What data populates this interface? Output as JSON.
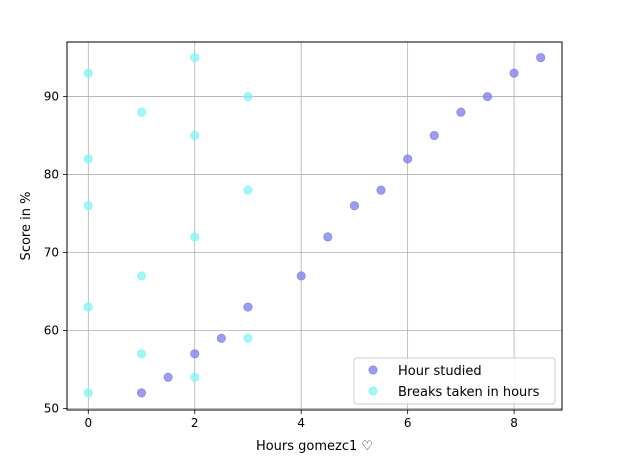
{
  "chart_data": {
    "type": "scatter",
    "xlabel": "Hours gomezc1 ♡",
    "ylabel": "Score in %",
    "xlim": [
      -0.4,
      8.9
    ],
    "ylim": [
      49.8,
      97.0
    ],
    "xticks": [
      0,
      2,
      4,
      6,
      8
    ],
    "yticks": [
      50,
      60,
      70,
      80,
      90
    ],
    "grid": true,
    "legend_position": "lower-right",
    "series": [
      {
        "name": "Hour studied",
        "color": "#7b7bf0",
        "points": [
          [
            1,
            52
          ],
          [
            1.5,
            54
          ],
          [
            2,
            57
          ],
          [
            2.5,
            59
          ],
          [
            3,
            63
          ],
          [
            4,
            67
          ],
          [
            4.5,
            72
          ],
          [
            5,
            76
          ],
          [
            5.5,
            78
          ],
          [
            6,
            82
          ],
          [
            6.5,
            85
          ],
          [
            7,
            88
          ],
          [
            7.5,
            90
          ],
          [
            8,
            93
          ],
          [
            8.5,
            95
          ]
        ]
      },
      {
        "name": "Breaks taken in hours",
        "color": "#7ff5f5",
        "points": [
          [
            0,
            93
          ],
          [
            0,
            82
          ],
          [
            0,
            76
          ],
          [
            0,
            63
          ],
          [
            0,
            52
          ],
          [
            1,
            88
          ],
          [
            1,
            67
          ],
          [
            1,
            57
          ],
          [
            2,
            95
          ],
          [
            2,
            85
          ],
          [
            2,
            72
          ],
          [
            2,
            54
          ],
          [
            3,
            90
          ],
          [
            3,
            78
          ],
          [
            3,
            59
          ]
        ]
      }
    ]
  }
}
